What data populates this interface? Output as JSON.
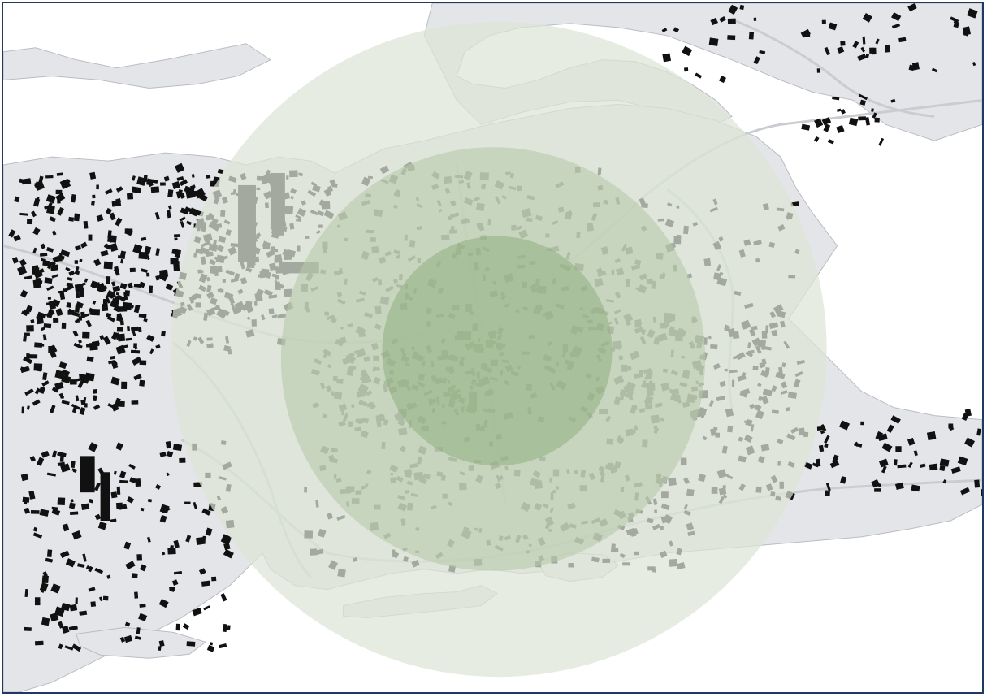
{
  "map": {
    "type": "site-radius-map",
    "rings": 3,
    "colors": {
      "water": "#ffffff",
      "land": "#e4e5e8",
      "land_edge": "#b9bcc2",
      "road": "#c9ccd1",
      "building": "#111111",
      "ring_outer": "#dde5d6",
      "ring_middle": "#b8c9aa",
      "ring_inner": "#8fae80",
      "frame": "#1f3864"
    }
  }
}
